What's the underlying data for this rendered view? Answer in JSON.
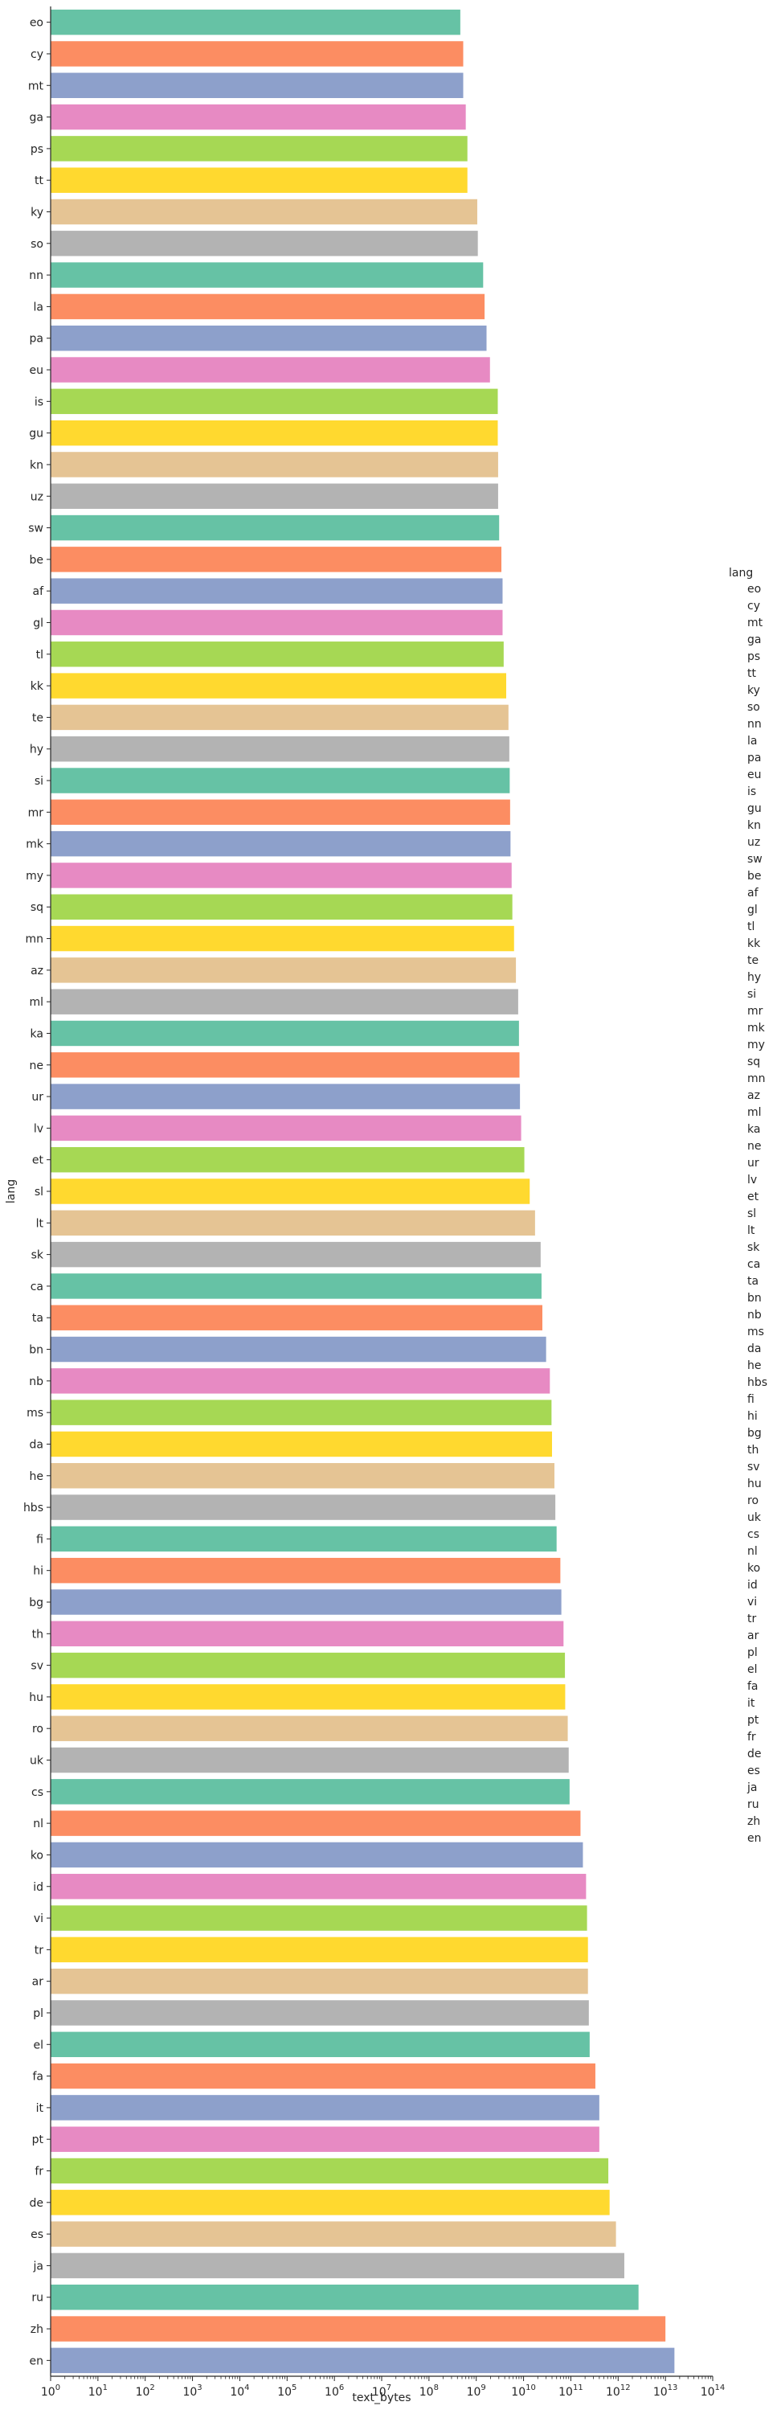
{
  "chart_data": {
    "type": "bar",
    "orientation": "horizontal",
    "xlabel": "text_bytes",
    "ylabel": "lang",
    "x_scale": "log",
    "xlim": [
      1,
      100000000000000
    ],
    "x_ticks": [
      {
        "base": "10",
        "exp": "0"
      },
      {
        "base": "10",
        "exp": "1"
      },
      {
        "base": "10",
        "exp": "2"
      },
      {
        "base": "10",
        "exp": "3"
      },
      {
        "base": "10",
        "exp": "4"
      },
      {
        "base": "10",
        "exp": "5"
      },
      {
        "base": "10",
        "exp": "6"
      },
      {
        "base": "10",
        "exp": "7"
      },
      {
        "base": "10",
        "exp": "8"
      },
      {
        "base": "10",
        "exp": "9"
      },
      {
        "base": "10",
        "exp": "10"
      },
      {
        "base": "10",
        "exp": "11"
      },
      {
        "base": "10",
        "exp": "12"
      },
      {
        "base": "10",
        "exp": "13"
      },
      {
        "base": "10",
        "exp": "14"
      }
    ],
    "grid": false,
    "legend": {
      "title": "lang",
      "placement": "right"
    },
    "palette": [
      "#66c2a5",
      "#fc8d62",
      "#8da0cb",
      "#e78ac3",
      "#a6d854",
      "#ffd92f",
      "#e5c494",
      "#b3b3b3"
    ],
    "categories": [
      "eo",
      "cy",
      "mt",
      "ga",
      "ps",
      "tt",
      "ky",
      "so",
      "nn",
      "la",
      "pa",
      "eu",
      "is",
      "gu",
      "kn",
      "uz",
      "sw",
      "be",
      "af",
      "gl",
      "tl",
      "kk",
      "te",
      "hy",
      "si",
      "mr",
      "mk",
      "my",
      "sq",
      "mn",
      "az",
      "ml",
      "ka",
      "ne",
      "ur",
      "lv",
      "et",
      "sl",
      "lt",
      "sk",
      "ca",
      "ta",
      "bn",
      "nb",
      "ms",
      "da",
      "he",
      "hbs",
      "fi",
      "hi",
      "bg",
      "th",
      "sv",
      "hu",
      "ro",
      "uk",
      "cs",
      "nl",
      "ko",
      "id",
      "vi",
      "tr",
      "ar",
      "pl",
      "el",
      "fa",
      "it",
      "pt",
      "fr",
      "de",
      "es",
      "ja",
      "ru",
      "zh",
      "en"
    ],
    "values": [
      460000000,
      530000000,
      530000000,
      600000000,
      650000000,
      650000000,
      1050000000,
      1080000000,
      1400000000,
      1500000000,
      1650000000,
      1950000000,
      2850000000,
      2850000000,
      2900000000,
      2900000000,
      3050000000,
      3400000000,
      3600000000,
      3600000000,
      3800000000,
      4300000000,
      4800000000,
      5000000000,
      5100000000,
      5200000000,
      5300000000,
      5600000000,
      5800000000,
      6300000000,
      6900000000,
      7700000000,
      8000000000,
      8200000000,
      8400000000,
      8900000000,
      10400000000,
      13500000000,
      17500000000,
      23000000000,
      24000000000,
      25000000000,
      30000000000,
      36000000000,
      39000000000,
      40000000000,
      45000000000,
      47000000000,
      50000000000,
      60000000000,
      63000000000,
      70000000000,
      75000000000,
      76000000000,
      86000000000,
      90000000000,
      94000000000,
      160000000000,
      180000000000,
      210000000000,
      220000000000,
      230000000000,
      230000000000,
      240000000000,
      250000000000,
      330000000000,
      400000000000,
      400000000000,
      620000000000,
      660000000000,
      900000000000,
      1350000000000,
      2700000000000,
      10000000000000,
      15500000000000
    ]
  }
}
